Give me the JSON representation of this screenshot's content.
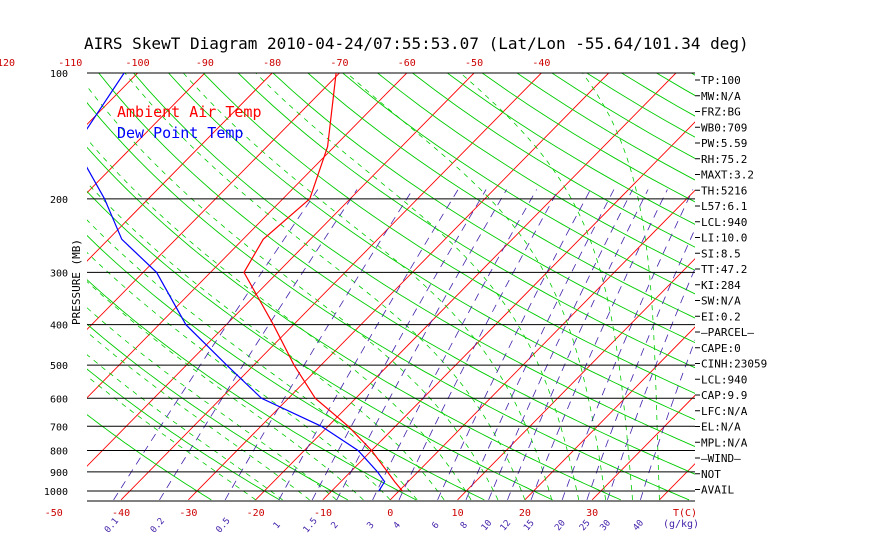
{
  "chart_data": {
    "type": "line",
    "title": "AIRS SkewT Diagram 2010-04-24/07:55:53.07 (Lat/Lon -55.64/101.34 deg)",
    "ylabel": "PRESSURE (MB)",
    "y_scale": "log",
    "y_reversed": true,
    "ylim": [
      1050,
      100
    ],
    "pressure_ticks": [
      100,
      200,
      300,
      400,
      500,
      600,
      700,
      800,
      900,
      1000
    ],
    "bottom_temp_ticks": [
      "-50",
      "-40",
      "-30",
      "-20",
      "-10",
      "0",
      "10",
      "20",
      "30"
    ],
    "bottom_temp_unit": "T(C)",
    "top_temp_ticks": [
      "-120",
      "-110",
      "-100",
      "-90",
      "-80",
      "-70",
      "-60",
      "-50",
      "-40"
    ],
    "mixing_ratio_labels": [
      "0.1",
      "0.2",
      "0.5",
      "1",
      "1.5",
      "2",
      "3",
      "4",
      "6",
      "8",
      "10",
      "12",
      "15",
      "20",
      "25",
      "30",
      "40"
    ],
    "mixing_ratio_unit": "(g/kg)",
    "legend": [
      {
        "name": "Ambient Air Temp",
        "color": "#ff0000"
      },
      {
        "name": "Dew Point Temp",
        "color": "#0000ff"
      }
    ],
    "legend_placement": "top-left",
    "series": [
      {
        "name": "Ambient Air Temp",
        "color": "#ff0000",
        "points": [
          {
            "p": 100,
            "t": -70.5
          },
          {
            "p": 150,
            "t": -61
          },
          {
            "p": 200,
            "t": -56
          },
          {
            "p": 250,
            "t": -57
          },
          {
            "p": 300,
            "t": -55
          },
          {
            "p": 400,
            "t": -43
          },
          {
            "p": 500,
            "t": -34
          },
          {
            "p": 600,
            "t": -26
          },
          {
            "p": 700,
            "t": -17
          },
          {
            "p": 800,
            "t": -10
          },
          {
            "p": 900,
            "t": -4.5
          },
          {
            "p": 950,
            "t": -2
          },
          {
            "p": 1000,
            "t": 0.5
          }
        ]
      },
      {
        "name": "Dew Point Temp",
        "color": "#0000ff",
        "points": [
          {
            "p": 100,
            "t": -102
          },
          {
            "p": 150,
            "t": -98.5
          },
          {
            "p": 200,
            "t": -86.5
          },
          {
            "p": 250,
            "t": -78
          },
          {
            "p": 300,
            "t": -68
          },
          {
            "p": 400,
            "t": -56
          },
          {
            "p": 500,
            "t": -44
          },
          {
            "p": 600,
            "t": -34
          },
          {
            "p": 700,
            "t": -21
          },
          {
            "p": 800,
            "t": -12
          },
          {
            "p": 900,
            "t": -6
          },
          {
            "p": 950,
            "t": -3.5
          },
          {
            "p": 1000,
            "t": -3
          }
        ]
      }
    ],
    "grid": {
      "isobars": true,
      "isotherms": true,
      "dry_adiabats": true,
      "moist_adiabats": true,
      "mixing_ratio_lines": true,
      "colors": {
        "isobar": "#000000",
        "isotherm": "#ff0000",
        "dry_adiabat": "#00cc00",
        "moist_adiabat": "#00cc00",
        "mixing_ratio": "#4422aa",
        "pressure_labels": "#000000",
        "bottom_temp_labels": "#cc0000",
        "mixing_labels": "#4422aa"
      }
    },
    "indices": [
      "TP:100",
      "MW:N/A",
      "FRZ:BG",
      "WB0:709",
      "PW:5.59",
      "RH:75.2",
      "MAXT:3.2",
      "TH:5216",
      "L57:6.1",
      "LCL:940",
      "LI:10.0",
      "SI:8.5",
      "TT:47.2",
      "KI:284",
      "SW:N/A",
      "EI:0.2",
      "—PARCEL—",
      "CAPE:0",
      "CINH:23059",
      "LCL:940",
      "CAP:9.9",
      "LFC:N/A",
      "EL:N/A",
      "MPL:N/A",
      "—WIND—",
      "NOT",
      "AVAIL"
    ]
  }
}
